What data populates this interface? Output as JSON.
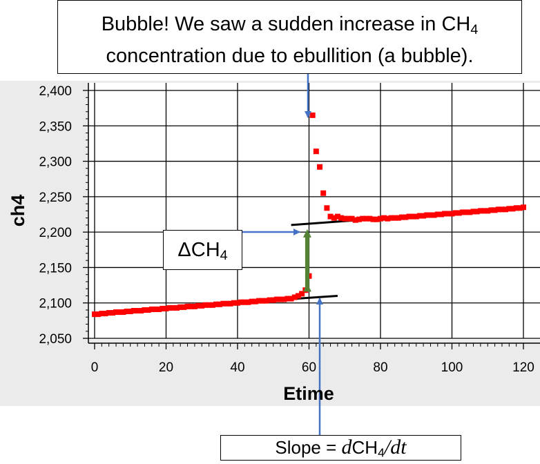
{
  "colors": {
    "points": "#ff0000",
    "fit_line": "#000000",
    "arrow_blue": "#4472c4",
    "arrow_green": "#548235",
    "panel": "#ebebeb"
  },
  "annotations": {
    "bubble": {
      "line1": "Bubble! We saw a sudden increase in CH",
      "line1_sub": "4",
      "line2": "concentration due to ebullition (a bubble)."
    },
    "delta": {
      "symbol": "Δ",
      "text": "CH",
      "sub": "4"
    },
    "slope": {
      "prefix": "Slope = ",
      "d1": "d",
      "ch": "CH",
      "sub": "4",
      "slash": "/",
      "dt": "dt"
    }
  },
  "chart_data": {
    "type": "scatter",
    "xlabel": "Etime",
    "ylabel": "ch4",
    "xlim": [
      0,
      120
    ],
    "ylim": [
      2050,
      2400
    ],
    "xticks": [
      0,
      20,
      40,
      60,
      80,
      100,
      120
    ],
    "yticks": [
      2050,
      2100,
      2150,
      2200,
      2250,
      2300,
      2350,
      2400
    ],
    "ytick_labels": [
      "2,050",
      "2,100",
      "2,150",
      "2,200",
      "2,250",
      "2,300",
      "2,350",
      "2,400"
    ],
    "grid": true,
    "series": [
      {
        "x": [
          0,
          1,
          2,
          3,
          4,
          5,
          6,
          7,
          8,
          9,
          10,
          11,
          12,
          13,
          14,
          15,
          16,
          17,
          18,
          19,
          20,
          21,
          22,
          23,
          24,
          25,
          26,
          27,
          28,
          29,
          30,
          31,
          32,
          33,
          34,
          35,
          36,
          37,
          38,
          39,
          40,
          41,
          42,
          43,
          44,
          45,
          46,
          47,
          48,
          49,
          50,
          51,
          52,
          53,
          54,
          55,
          56,
          57,
          58,
          59,
          60,
          61,
          62,
          63,
          64,
          65,
          66,
          67,
          68,
          69,
          70,
          71,
          72,
          73,
          74,
          75,
          76,
          77,
          78,
          79,
          80,
          81,
          82,
          83,
          84,
          85,
          86,
          87,
          88,
          89,
          90,
          91,
          92,
          93,
          94,
          95,
          96,
          97,
          98,
          99,
          100,
          101,
          102,
          103,
          104,
          105,
          106,
          107,
          108,
          109,
          110,
          111,
          112,
          113,
          114,
          115,
          116,
          117,
          118,
          119,
          120
        ],
        "y": [
          2084,
          2084,
          2085,
          2085,
          2086,
          2086,
          2087,
          2087,
          2087,
          2088,
          2088,
          2089,
          2089,
          2089,
          2090,
          2090,
          2091,
          2091,
          2091,
          2092,
          2092,
          2093,
          2093,
          2093,
          2094,
          2094,
          2095,
          2095,
          2095,
          2096,
          2096,
          2097,
          2097,
          2097,
          2098,
          2098,
          2099,
          2099,
          2099,
          2100,
          2100,
          2101,
          2101,
          2101,
          2102,
          2102,
          2103,
          2103,
          2103,
          2104,
          2104,
          2105,
          2105,
          2105,
          2106,
          2106,
          2108,
          2110,
          2113,
          2118,
          2138,
          2365,
          2314,
          2292,
          2255,
          2234,
          2222,
          2220,
          2222,
          2220,
          2219,
          2219,
          2219,
          2217,
          2218,
          2219,
          2219,
          2219,
          2218,
          2218,
          2219,
          2220,
          2219,
          2220,
          2220,
          2220,
          2221,
          2221,
          2222,
          2222,
          2222,
          2223,
          2223,
          2224,
          2224,
          2224,
          2225,
          2225,
          2226,
          2226,
          2226,
          2227,
          2227,
          2228,
          2228,
          2228,
          2229,
          2229,
          2230,
          2230,
          2230,
          2231,
          2231,
          2232,
          2232,
          2232,
          2233,
          2233,
          2234,
          2234,
          2235
        ]
      }
    ],
    "fit_lines": [
      {
        "x": [
          4,
          68
        ],
        "y": [
          2088,
          2110
        ]
      },
      {
        "x": [
          55,
          120
        ],
        "y": [
          2210,
          2234
        ]
      }
    ],
    "delta_marker": {
      "x": 59.5,
      "y_from": 2112,
      "y_to": 2208
    }
  }
}
